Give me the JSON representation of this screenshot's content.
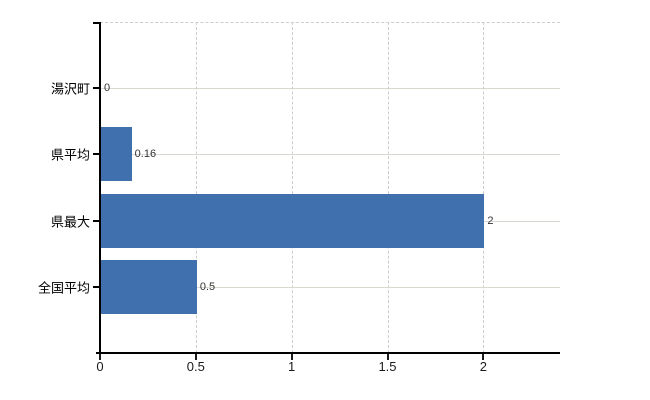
{
  "chart_data": {
    "type": "bar",
    "orientation": "horizontal",
    "categories": [
      "湯沢町",
      "県平均",
      "県最大",
      "全国平均"
    ],
    "values": [
      0,
      0.16,
      2,
      0.5
    ],
    "value_labels": [
      "0",
      "0.16",
      "2",
      "0.5"
    ],
    "x_ticks": [
      0,
      0.5,
      1,
      1.5,
      2
    ],
    "x_tick_labels": [
      "0",
      "0.5",
      "1",
      "1.5",
      "2"
    ],
    "xlim": [
      0,
      2.4
    ],
    "grid": true,
    "legend": false,
    "bar_color": "#4170ae",
    "hgrid_color": "#d6dbd2",
    "vgrid_color": "#cccccc",
    "axis_color": "#000000",
    "value_label_color": "#333333",
    "tick_label_color": "#1a1a1a"
  }
}
